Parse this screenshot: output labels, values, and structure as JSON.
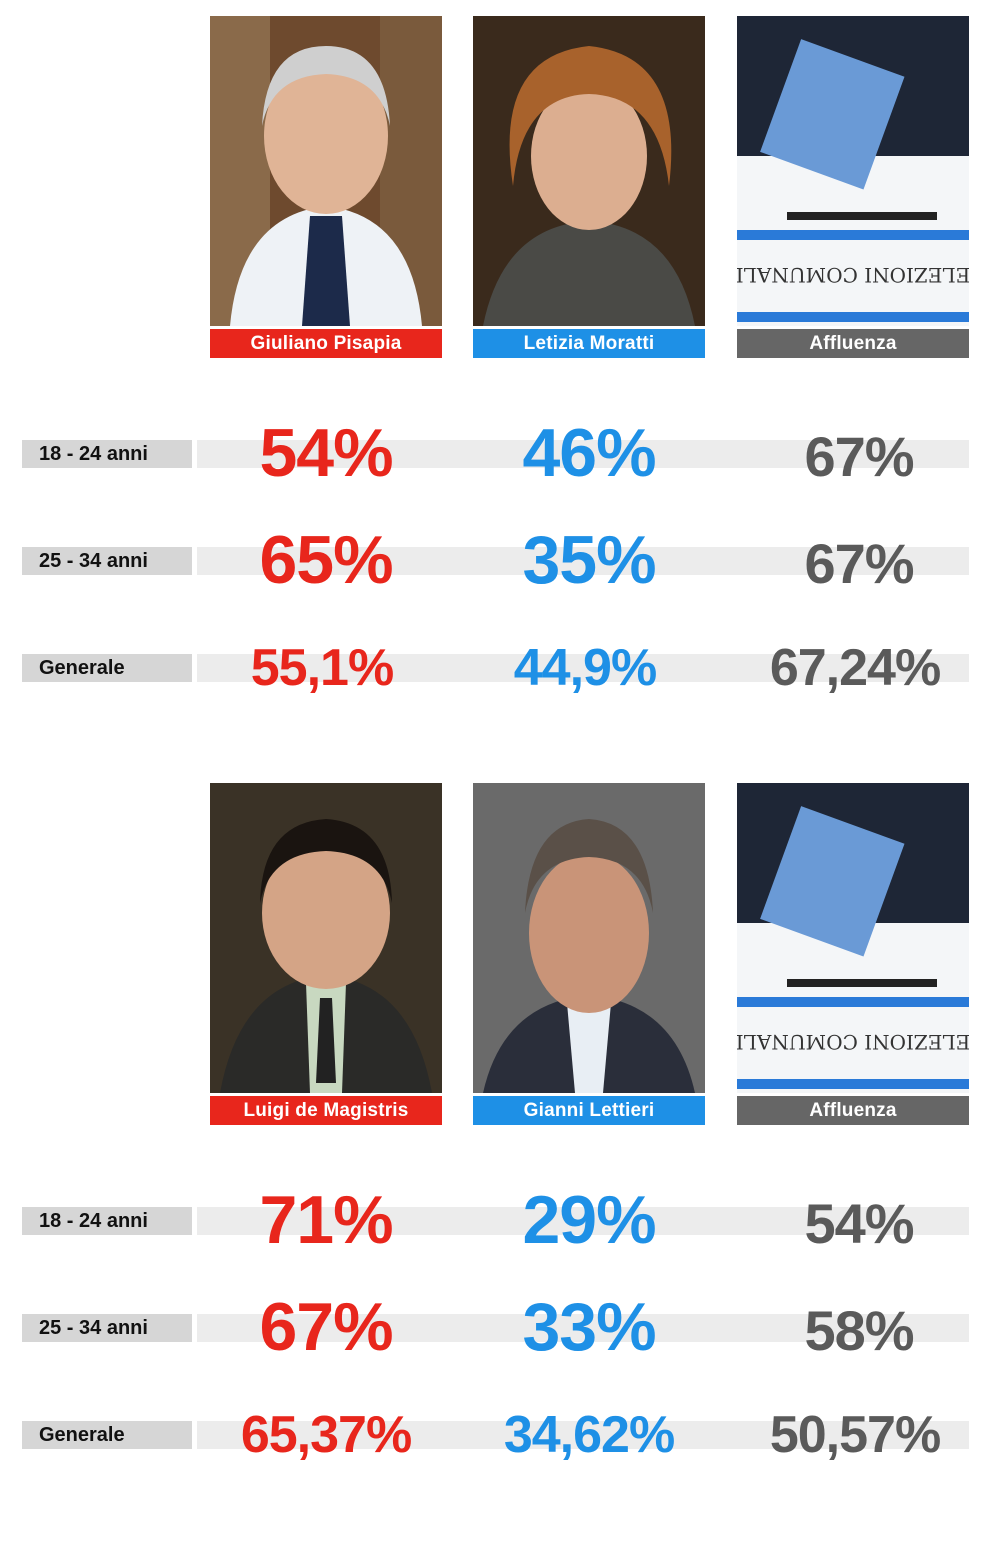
{
  "sections": [
    {
      "candidates": [
        {
          "name": "Giuliano Pisapia",
          "color": "#e8261c",
          "icon": "candidate-photo"
        },
        {
          "name": "Letizia Moratti",
          "color": "#1e90e6",
          "icon": "candidate-photo"
        },
        {
          "name": "Affluenza",
          "color": "#666666",
          "icon": "ballot-box-photo",
          "box_text": "ELEZIONI COMUNALI"
        }
      ],
      "rows": [
        {
          "label": "18 - 24 anni",
          "values": [
            "54%",
            "46%",
            "67%"
          ]
        },
        {
          "label": "25 - 34 anni",
          "values": [
            "65%",
            "35%",
            "67%"
          ]
        },
        {
          "label": "Generale",
          "values": [
            "55,1%",
            "44,9%",
            "67,24%"
          ]
        }
      ]
    },
    {
      "candidates": [
        {
          "name": "Luigi de Magistris",
          "color": "#e8261c",
          "icon": "candidate-photo"
        },
        {
          "name": "Gianni Lettieri",
          "color": "#1e90e6",
          "icon": "candidate-photo"
        },
        {
          "name": "Affluenza",
          "color": "#666666",
          "icon": "ballot-box-photo",
          "box_text": "ELEZIONI COMUNALI"
        }
      ],
      "rows": [
        {
          "label": "18 - 24 anni",
          "values": [
            "71%",
            "29%",
            "54%"
          ]
        },
        {
          "label": "25 - 34 anni",
          "values": [
            "67%",
            "33%",
            "58%"
          ]
        },
        {
          "label": "Generale",
          "values": [
            "65,37%",
            "34,62%",
            "50,57%"
          ]
        }
      ]
    }
  ]
}
